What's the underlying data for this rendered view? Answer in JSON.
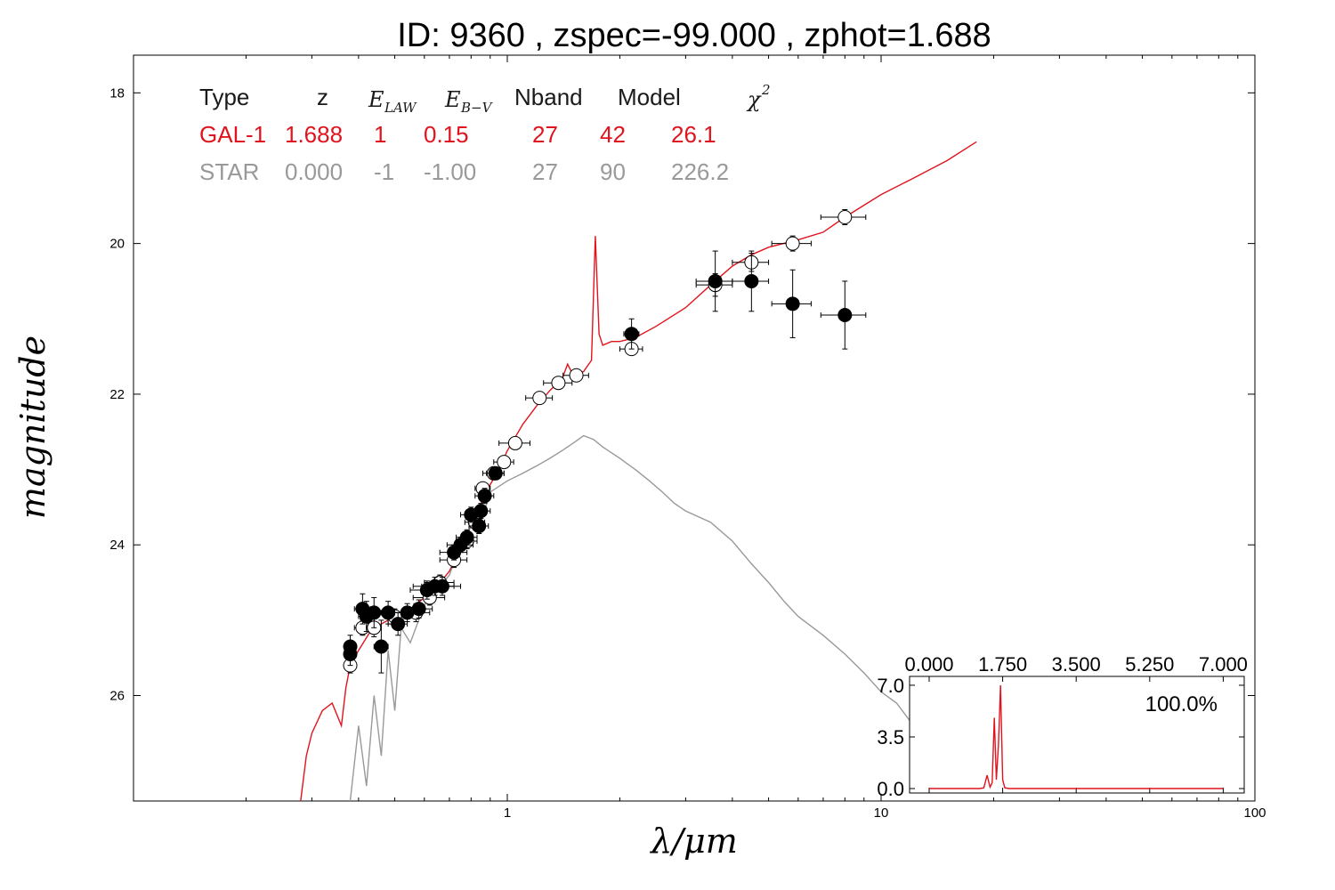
{
  "colors": {
    "galaxy": "#e0141e",
    "star": "#999999",
    "axis": "#000000"
  },
  "chart_data": [
    {
      "type": "scatter",
      "title": "ID:  9360  , zspec=-99.000 , zphot=1.688",
      "xlabel": "λ/μm",
      "ylabel": "magnitude",
      "xscale": "log",
      "xlim": [
        0.1,
        100
      ],
      "ylim": [
        27.4,
        17.5
      ],
      "y_inverted": true,
      "x_ticks": [
        {
          "v": 1,
          "label": "1"
        },
        {
          "v": 10,
          "label": "10"
        },
        {
          "v": 100,
          "label": "100"
        }
      ],
      "y_ticks": [
        {
          "v": 18,
          "label": "18"
        },
        {
          "v": 20,
          "label": "20"
        },
        {
          "v": 22,
          "label": "22"
        },
        {
          "v": 24,
          "label": "24"
        },
        {
          "v": 26,
          "label": "26"
        }
      ],
      "table": {
        "headers": [
          "Type",
          "z",
          "E_LAW",
          "E_B−V",
          "Nband",
          "Model",
          "χ2"
        ],
        "rows": [
          {
            "cells": [
              "GAL-1",
              "1.688",
              "1",
              "0.15",
              "27",
              "42",
              "26.1"
            ],
            "color": "#e0141e"
          },
          {
            "cells": [
              "STAR",
              "0.000",
              "-1",
              "-1.00",
              "27",
              "90",
              "226.2"
            ],
            "color": "#999999"
          }
        ]
      },
      "series": [
        {
          "name": "GAL-1",
          "kind": "line",
          "color": "#e0141e",
          "points": [
            [
              0.28,
              27.4
            ],
            [
              0.29,
              26.8
            ],
            [
              0.3,
              26.5
            ],
            [
              0.32,
              26.2
            ],
            [
              0.34,
              26.1
            ],
            [
              0.36,
              26.4
            ],
            [
              0.37,
              25.9
            ],
            [
              0.38,
              25.6
            ],
            [
              0.4,
              25.4
            ],
            [
              0.43,
              25.15
            ],
            [
              0.46,
              25.05
            ],
            [
              0.5,
              24.95
            ],
            [
              0.55,
              24.85
            ],
            [
              0.6,
              24.7
            ],
            [
              0.65,
              24.55
            ],
            [
              0.7,
              24.35
            ],
            [
              0.75,
              24.05
            ],
            [
              0.8,
              23.75
            ],
            [
              0.85,
              23.45
            ],
            [
              0.9,
              23.2
            ],
            [
              0.95,
              23.0
            ],
            [
              1.0,
              22.75
            ],
            [
              1.1,
              22.4
            ],
            [
              1.2,
              22.15
            ],
            [
              1.3,
              21.95
            ],
            [
              1.4,
              21.8
            ],
            [
              1.45,
              21.6
            ],
            [
              1.5,
              21.75
            ],
            [
              1.6,
              21.7
            ],
            [
              1.68,
              21.55
            ],
            [
              1.72,
              19.9
            ],
            [
              1.76,
              21.2
            ],
            [
              1.8,
              21.35
            ],
            [
              1.9,
              21.3
            ],
            [
              2.0,
              21.3
            ],
            [
              2.2,
              21.25
            ],
            [
              2.5,
              21.1
            ],
            [
              3.0,
              20.85
            ],
            [
              3.5,
              20.55
            ],
            [
              4.0,
              20.3
            ],
            [
              4.5,
              20.15
            ],
            [
              5.0,
              20.05
            ],
            [
              6.0,
              19.95
            ],
            [
              7.0,
              19.85
            ],
            [
              8.0,
              19.65
            ],
            [
              10,
              19.35
            ],
            [
              12,
              19.15
            ],
            [
              15,
              18.9
            ],
            [
              18,
              18.65
            ]
          ]
        },
        {
          "name": "STAR",
          "kind": "line",
          "color": "#999999",
          "points": [
            [
              0.38,
              27.4
            ],
            [
              0.4,
              26.4
            ],
            [
              0.42,
              27.2
            ],
            [
              0.44,
              26.0
            ],
            [
              0.46,
              26.8
            ],
            [
              0.48,
              25.4
            ],
            [
              0.5,
              26.2
            ],
            [
              0.52,
              25.1
            ],
            [
              0.55,
              25.3
            ],
            [
              0.6,
              24.8
            ],
            [
              0.65,
              24.6
            ],
            [
              0.7,
              24.4
            ],
            [
              0.75,
              24.0
            ],
            [
              0.8,
              23.75
            ],
            [
              0.85,
              23.7
            ],
            [
              0.9,
              23.3
            ],
            [
              1.0,
              23.15
            ],
            [
              1.1,
              23.05
            ],
            [
              1.2,
              22.95
            ],
            [
              1.3,
              22.85
            ],
            [
              1.4,
              22.75
            ],
            [
              1.5,
              22.65
            ],
            [
              1.6,
              22.55
            ],
            [
              1.7,
              22.6
            ],
            [
              1.8,
              22.7
            ],
            [
              2.0,
              22.85
            ],
            [
              2.2,
              23.0
            ],
            [
              2.4,
              23.15
            ],
            [
              2.6,
              23.3
            ],
            [
              2.8,
              23.45
            ],
            [
              3.0,
              23.55
            ],
            [
              3.5,
              23.7
            ],
            [
              4.0,
              23.95
            ],
            [
              4.5,
              24.25
            ],
            [
              5.0,
              24.5
            ],
            [
              5.5,
              24.75
            ],
            [
              6.0,
              24.95
            ],
            [
              7.0,
              25.2
            ],
            [
              8.0,
              25.45
            ],
            [
              9.0,
              25.7
            ],
            [
              10.0,
              25.95
            ],
            [
              11.0,
              26.1
            ],
            [
              12.0,
              26.35
            ]
          ]
        },
        {
          "name": "observed (open)",
          "kind": "points",
          "marker": "open-circle",
          "points": [
            [
              0.38,
              25.6,
              0.01,
              0.1
            ],
            [
              0.41,
              25.1,
              0.02,
              0.1
            ],
            [
              0.44,
              25.1,
              0.02,
              0.12
            ],
            [
              0.5,
              24.95,
              0.03,
              0.1
            ],
            [
              0.57,
              24.9,
              0.05,
              0.12
            ],
            [
              0.62,
              24.7,
              0.06,
              0.1
            ],
            [
              0.66,
              24.5,
              0.06,
              0.1
            ],
            [
              0.72,
              24.2,
              0.06,
              0.1
            ],
            [
              0.78,
              23.95,
              0.05,
              0.1
            ],
            [
              0.82,
              23.7,
              0.05,
              0.1
            ],
            [
              0.86,
              23.25,
              0.04,
              0.08
            ],
            [
              0.92,
              23.05,
              0.06,
              0.08
            ],
            [
              0.98,
              22.9,
              0.06,
              0.08
            ],
            [
              1.05,
              22.65,
              0.1,
              0.08
            ],
            [
              1.22,
              22.05,
              0.1,
              0.08
            ],
            [
              1.37,
              21.85,
              0.12,
              0.08
            ],
            [
              1.53,
              21.75,
              0.12,
              0.08
            ],
            [
              2.15,
              21.4,
              0.15,
              0.08
            ],
            [
              3.6,
              20.55,
              0.4,
              0.15
            ],
            [
              4.5,
              20.25,
              0.5,
              0.12
            ],
            [
              5.8,
              20.0,
              0.7,
              0.1
            ],
            [
              8.0,
              19.65,
              1.1,
              0.1
            ]
          ]
        },
        {
          "name": "observed (filled)",
          "kind": "points",
          "marker": "filled-circle",
          "points": [
            [
              0.38,
              25.35,
              0.01,
              0.15
            ],
            [
              0.38,
              25.45,
              0.01,
              0.15
            ],
            [
              0.41,
              24.85,
              0.02,
              0.2
            ],
            [
              0.42,
              24.95,
              0.02,
              0.2
            ],
            [
              0.44,
              24.9,
              0.02,
              0.2
            ],
            [
              0.46,
              25.35,
              0.02,
              0.35
            ],
            [
              0.48,
              24.9,
              0.06,
              0.15
            ],
            [
              0.51,
              25.05,
              0.03,
              0.15
            ],
            [
              0.54,
              24.9,
              0.04,
              0.12
            ],
            [
              0.58,
              24.85,
              0.05,
              0.12
            ],
            [
              0.61,
              24.6,
              0.06,
              0.12
            ],
            [
              0.64,
              24.55,
              0.08,
              0.12
            ],
            [
              0.67,
              24.55,
              0.08,
              0.12
            ],
            [
              0.72,
              24.1,
              0.06,
              0.1
            ],
            [
              0.75,
              24.0,
              0.06,
              0.1
            ],
            [
              0.78,
              23.9,
              0.05,
              0.1
            ],
            [
              0.8,
              23.6,
              0.05,
              0.1
            ],
            [
              0.84,
              23.75,
              0.05,
              0.1
            ],
            [
              0.85,
              23.55,
              0.05,
              0.1
            ],
            [
              0.87,
              23.35,
              0.05,
              0.1
            ],
            [
              0.93,
              23.05,
              0.05,
              0.08
            ],
            [
              2.15,
              21.2,
              0.1,
              0.2
            ],
            [
              3.6,
              20.5,
              0.4,
              0.4
            ],
            [
              4.5,
              20.5,
              0.5,
              0.4
            ],
            [
              5.8,
              20.8,
              0.7,
              0.45
            ],
            [
              8.0,
              20.95,
              1.1,
              0.45
            ]
          ]
        }
      ]
    },
    {
      "type": "line",
      "title": "",
      "label": "100.0%",
      "xlim": [
        0,
        7.5
      ],
      "ylim": [
        -0.3,
        7.6
      ],
      "x_ticks": [
        {
          "v": 0,
          "label": "0.000"
        },
        {
          "v": 1.75,
          "label": "1.750"
        },
        {
          "v": 3.5,
          "label": "3.500"
        },
        {
          "v": 5.25,
          "label": "5.250"
        },
        {
          "v": 7,
          "label": "7.000"
        }
      ],
      "y_ticks": [
        {
          "v": 0,
          "label": "0.0"
        },
        {
          "v": 3.5,
          "label": "3.5"
        },
        {
          "v": 7,
          "label": "7.0"
        }
      ],
      "series": [
        {
          "name": "",
          "color": "#e0141e",
          "points": [
            [
              0,
              0
            ],
            [
              1.2,
              0
            ],
            [
              1.3,
              0.05
            ],
            [
              1.38,
              0.9
            ],
            [
              1.45,
              0.1
            ],
            [
              1.5,
              0.4
            ],
            [
              1.55,
              4.8
            ],
            [
              1.6,
              0.6
            ],
            [
              1.65,
              3.0
            ],
            [
              1.7,
              7.0
            ],
            [
              1.75,
              0.6
            ],
            [
              1.8,
              0.05
            ],
            [
              1.9,
              0
            ],
            [
              7,
              0
            ]
          ]
        }
      ]
    }
  ]
}
